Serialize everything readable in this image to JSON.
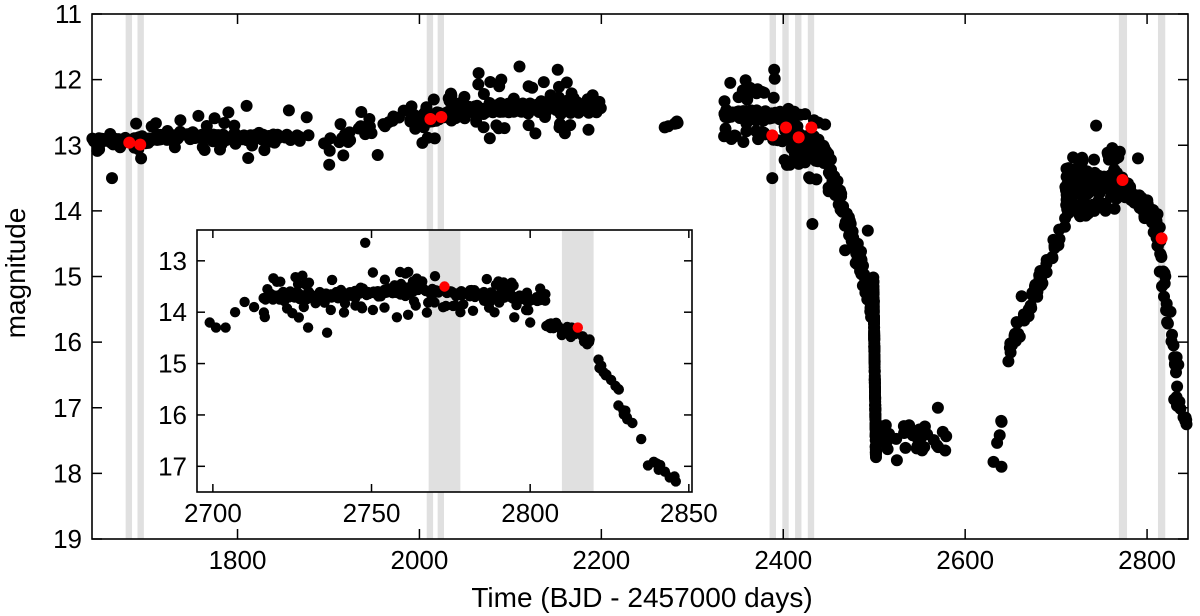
{
  "chart_data": [
    {
      "type": "scatter",
      "title": "",
      "xlabel": "Time (BJD - 2457000 days)",
      "ylabel": "magnitude",
      "xlim": [
        1640,
        2845
      ],
      "ylim": [
        19,
        11
      ],
      "y_inverted": true,
      "grid": false,
      "xticks": [
        1800,
        2000,
        2200,
        2400,
        2600,
        2800
      ],
      "xtick_labels": [
        "1800",
        "2000",
        "2200",
        "2400",
        "2600",
        "2800"
      ],
      "yticks": [
        11,
        12,
        13,
        14,
        15,
        16,
        17,
        18,
        19
      ],
      "ytick_labels": [
        "11",
        "12",
        "13",
        "14",
        "15",
        "16",
        "17",
        "18",
        "19"
      ],
      "shaded_intervals": [
        [
          1677,
          1684
        ],
        [
          1690,
          1697
        ],
        [
          2008,
          2015
        ],
        [
          2020,
          2027
        ],
        [
          2385,
          2392
        ],
        [
          2399,
          2406
        ],
        [
          2413,
          2420
        ],
        [
          2427,
          2434
        ],
        [
          2769,
          2778
        ],
        [
          2812,
          2820
        ]
      ],
      "shaded_color": "#e0e0e0",
      "colors": {
        "points": "#000000",
        "highlight": "#ff0000"
      },
      "series": [
        {
          "color": "#000000",
          "segments": [
            {
              "x0": 1640,
              "x1": 1660,
              "y0": 12.92,
              "y1": 12.92,
              "n": 30,
              "jitter": 0.05,
              "outlier_rate": 0.1,
              "outlier_amp": 0.25
            },
            {
              "x0": 1660,
              "x1": 1735,
              "y0": 12.95,
              "y1": 12.88,
              "n": 90,
              "jitter": 0.07,
              "outlier_rate": 0.15,
              "outlier_amp": 0.35
            },
            {
              "x0": 1735,
              "x1": 1840,
              "y0": 12.85,
              "y1": 12.88,
              "n": 95,
              "jitter": 0.08,
              "outlier_rate": 0.2,
              "outlier_amp": 0.4
            },
            {
              "x0": 1840,
              "x1": 1880,
              "y0": 12.9,
              "y1": 12.85,
              "n": 14,
              "jitter": 0.1,
              "outlier_rate": 0.25,
              "outlier_amp": 0.4
            },
            {
              "x0": 1895,
              "x1": 1990,
              "y0": 12.95,
              "y1": 12.6,
              "n": 30,
              "jitter": 0.12,
              "outlier_rate": 0.25,
              "outlier_amp": 0.4
            },
            {
              "x0": 1990,
              "x1": 2050,
              "y0": 12.62,
              "y1": 12.52,
              "n": 110,
              "jitter": 0.1,
              "outlier_rate": 0.2,
              "outlier_amp": 0.4
            },
            {
              "x0": 2050,
              "x1": 2200,
              "y0": 12.45,
              "y1": 12.42,
              "n": 200,
              "jitter": 0.1,
              "outlier_rate": 0.2,
              "outlier_amp": 0.4
            },
            {
              "x0": 2268,
              "x1": 2285,
              "y0": 12.72,
              "y1": 12.65,
              "n": 6,
              "jitter": 0.05,
              "outlier_rate": 0,
              "outlier_amp": 0
            },
            {
              "x0": 2335,
              "x1": 2400,
              "y0": 12.52,
              "y1": 12.55,
              "n": 150,
              "jitter": 0.07,
              "outlier_rate": 0.25,
              "outlier_amp": 0.5
            },
            {
              "x0": 2400,
              "x1": 2450,
              "y0": 12.8,
              "y1": 13.2,
              "n": 130,
              "jitter": 0.2,
              "outlier_rate": 0.25,
              "outlier_amp": 0.6
            },
            {
              "x0": 2450,
              "x1": 2485,
              "y0": 13.3,
              "y1": 14.8,
              "n": 55,
              "jitter": 0.25,
              "outlier_rate": 0.1,
              "outlier_amp": 0.4
            },
            {
              "x0": 2485,
              "x1": 2500,
              "y0": 14.8,
              "y1": 15.6,
              "n": 40,
              "jitter": 0.25,
              "outlier_rate": 0,
              "outlier_amp": 0
            },
            {
              "x0": 2499,
              "x1": 2502,
              "y0": 15.0,
              "y1": 17.8,
              "n": 140,
              "jitter": 0.05,
              "outlier_rate": 0,
              "outlier_amp": 0
            },
            {
              "x0": 2505,
              "x1": 2580,
              "y0": 17.4,
              "y1": 17.5,
              "n": 30,
              "jitter": 0.25,
              "outlier_rate": 0,
              "outlier_amp": 0
            },
            {
              "x0": 2630,
              "x1": 2645,
              "y0": 17.8,
              "y1": 17.0,
              "n": 5,
              "jitter": 0.12,
              "outlier_rate": 0,
              "outlier_amp": 0
            },
            {
              "x0": 2645,
              "x1": 2710,
              "y0": 16.2,
              "y1": 14.2,
              "n": 55,
              "jitter": 0.22,
              "outlier_rate": 0.1,
              "outlier_amp": 0.3
            },
            {
              "x0": 2710,
              "x1": 2770,
              "y0": 13.7,
              "y1": 13.52,
              "n": 200,
              "jitter": 0.15,
              "outlier_rate": 0.3,
              "outlier_amp": 0.5
            },
            {
              "x0": 2770,
              "x1": 2810,
              "y0": 13.55,
              "y1": 14.1,
              "n": 75,
              "jitter": 0.12,
              "outlier_rate": 0.15,
              "outlier_amp": 0.3
            },
            {
              "x0": 2810,
              "x1": 2835,
              "y0": 14.2,
              "y1": 16.7,
              "n": 40,
              "jitter": 0.4,
              "outlier_rate": 0,
              "outlier_amp": 0
            },
            {
              "x0": 2828,
              "x1": 2845,
              "y0": 16.8,
              "y1": 17.2,
              "n": 10,
              "jitter": 0.12,
              "outlier_rate": 0,
              "outlier_amp": 0
            }
          ],
          "points": [
            [
              1662,
              13.5
            ],
            [
              1694,
              13.2
            ],
            [
              1790,
              12.5
            ],
            [
              1810,
              12.4
            ],
            [
              1945,
              12.6
            ],
            [
              2035,
              12.25
            ],
            [
              2065,
              11.9
            ],
            [
              2110,
              11.8
            ],
            [
              2090,
              12.0
            ],
            [
              2120,
              12.1
            ],
            [
              2152,
              11.85
            ],
            [
              2185,
              12.3
            ],
            [
              2390,
              11.85
            ],
            [
              2388,
              13.5
            ],
            [
              2432,
              14.2
            ],
            [
              2450,
              13.7
            ],
            [
              2468,
              14.6
            ],
            [
              2482,
              14.5
            ],
            [
              2493,
              14.3
            ],
            [
              2510,
              17.4
            ],
            [
              2525,
              17.8
            ],
            [
              2555,
              17.6
            ],
            [
              2570,
              17.0
            ],
            [
              2640,
              17.9
            ],
            [
              2662,
              15.3
            ],
            [
              2670,
              15.5
            ],
            [
              2744,
              12.7
            ],
            [
              2770,
              13.1
            ],
            [
              2790,
              13.2
            ],
            [
              2842,
              17.2
            ]
          ]
        },
        {
          "color": "#ff0000",
          "points": [
            [
              1681,
              12.96
            ],
            [
              1693,
              12.99
            ],
            [
              2012,
              12.6
            ],
            [
              2024,
              12.57
            ],
            [
              2388,
              12.85
            ],
            [
              2403,
              12.73
            ],
            [
              2417,
              12.88
            ],
            [
              2431,
              12.73
            ],
            [
              2773,
              13.53
            ],
            [
              2816,
              14.42
            ]
          ]
        }
      ]
    },
    {
      "type": "scatter",
      "title": "",
      "xlabel": "",
      "ylabel": "",
      "xlim": [
        2695,
        2851
      ],
      "ylim": [
        17.5,
        12.4
      ],
      "y_inverted": true,
      "grid": false,
      "xticks": [
        2700,
        2750,
        2800,
        2850
      ],
      "xtick_labels": [
        "2700",
        "2750",
        "2800",
        "2850"
      ],
      "yticks": [
        13,
        14,
        15,
        16,
        17
      ],
      "ytick_labels": [
        "13",
        "14",
        "15",
        "16",
        "17"
      ],
      "shaded_intervals": [
        [
          2768,
          2778
        ],
        [
          2810,
          2820
        ]
      ],
      "shaded_color": "#e0e0e0",
      "colors": {
        "points": "#000000",
        "highlight": "#ff0000"
      },
      "series": [
        {
          "color": "#000000",
          "segments": [
            {
              "x0": 2716,
              "x1": 2770,
              "y0": 13.7,
              "y1": 13.58,
              "n": 180,
              "jitter": 0.1,
              "outlier_rate": 0.3,
              "outlier_amp": 0.4
            },
            {
              "x0": 2770,
              "x1": 2805,
              "y0": 13.58,
              "y1": 13.75,
              "n": 120,
              "jitter": 0.08,
              "outlier_rate": 0.2,
              "outlier_amp": 0.3
            },
            {
              "x0": 2805,
              "x1": 2820,
              "y0": 14.2,
              "y1": 14.6,
              "n": 25,
              "jitter": 0.12,
              "outlier_rate": 0,
              "outlier_amp": 0
            },
            {
              "x0": 2820,
              "x1": 2828,
              "y0": 14.9,
              "y1": 15.5,
              "n": 10,
              "jitter": 0.12,
              "outlier_rate": 0,
              "outlier_amp": 0
            },
            {
              "x0": 2827,
              "x1": 2835,
              "y0": 15.7,
              "y1": 16.5,
              "n": 8,
              "jitter": 0.15,
              "outlier_rate": 0,
              "outlier_amp": 0
            },
            {
              "x0": 2835,
              "x1": 2846,
              "y0": 16.8,
              "y1": 17.2,
              "n": 10,
              "jitter": 0.12,
              "outlier_rate": 0,
              "outlier_amp": 0
            }
          ],
          "points": [
            [
              2699,
              14.2
            ],
            [
              2701,
              14.3
            ],
            [
              2704,
              14.3
            ],
            [
              2707,
              14.0
            ],
            [
              2710,
              13.8
            ],
            [
              2713,
              13.9
            ],
            [
              2748,
              12.65
            ],
            [
              2730,
              14.3
            ],
            [
              2736,
              14.4
            ],
            [
              2758,
              14.1
            ],
            [
              2778,
              14.0
            ],
            [
              2795,
              14.1
            ],
            [
              2800,
              14.2
            ],
            [
              2770,
              13.3
            ],
            [
              2790,
              13.4
            ]
          ]
        },
        {
          "color": "#ff0000",
          "points": [
            [
              2773,
              13.5
            ],
            [
              2815,
              14.3
            ]
          ]
        }
      ]
    }
  ]
}
